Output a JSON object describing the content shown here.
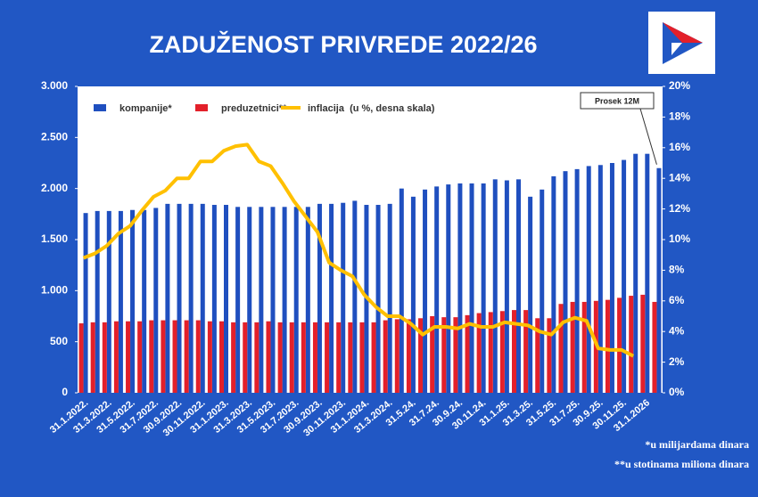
{
  "chart_data": {
    "type": "bar-line",
    "title": "ZADUŽENOST PRIVREDE  2022/26",
    "categories": [
      "31.1.2022.",
      null,
      "31.3.2022.",
      null,
      "31.5.2022.",
      null,
      "31.7.2022.",
      null,
      "30.9.2022.",
      null,
      "30.11.2022.",
      null,
      "31.1.2023.",
      null,
      "31.3.2023.",
      null,
      "31.5.2023.",
      null,
      "31.7.2023.",
      null,
      "30.9.2023.",
      null,
      "30.11.2023.",
      null,
      "31.1.2024.",
      null,
      "31.3.2024.",
      null,
      "31.5.24.",
      null,
      "31.7.24.",
      null,
      "30.9.24.",
      null,
      "30.11.24.",
      null,
      "31.1.25.",
      null,
      "31.3.25.",
      null,
      "31.5.25.",
      null,
      "31.7.25.",
      null,
      "30.9.25.",
      null,
      "30.11.25.",
      null,
      "31.1.2026",
      null
    ],
    "series": [
      {
        "name": "kompanije*",
        "color": "#1f4fbf",
        "type": "bar",
        "values": [
          1760,
          1780,
          1780,
          1780,
          1790,
          1790,
          1810,
          1850,
          1850,
          1850,
          1850,
          1840,
          1840,
          1820,
          1820,
          1820,
          1820,
          1820,
          1820,
          1820,
          1850,
          1850,
          1860,
          1880,
          1840,
          1840,
          1850,
          2000,
          1920,
          1990,
          2020,
          2040,
          2050,
          2050,
          2050,
          2090,
          2080,
          2090,
          1920,
          1990,
          2120,
          2170,
          2190,
          2220,
          2230,
          2250,
          2280,
          2340,
          2340,
          2200
        ]
      },
      {
        "name": "preduzetnici**",
        "color": "#e3202a",
        "type": "bar",
        "values": [
          680,
          690,
          690,
          700,
          700,
          700,
          710,
          710,
          710,
          710,
          710,
          700,
          700,
          690,
          690,
          690,
          700,
          690,
          690,
          690,
          690,
          690,
          690,
          690,
          690,
          690,
          710,
          720,
          720,
          730,
          750,
          740,
          740,
          760,
          780,
          790,
          800,
          810,
          810,
          730,
          730,
          870,
          890,
          890,
          900,
          910,
          930,
          950,
          960,
          890
        ]
      },
      {
        "name": "inflacija  (u %, desna skala)",
        "color": "#ffc000",
        "type": "line",
        "axis": "y2",
        "values": [
          8.8,
          9.1,
          9.6,
          10.4,
          10.9,
          11.9,
          12.8,
          13.2,
          14.0,
          14.0,
          15.1,
          15.1,
          15.8,
          16.1,
          16.2,
          15.1,
          14.8,
          13.7,
          12.5,
          11.5,
          10.5,
          8.5,
          8.0,
          7.6,
          6.4,
          5.6,
          5.0,
          5.0,
          4.5,
          3.8,
          4.3,
          4.3,
          4.2,
          4.5,
          4.3,
          4.3,
          4.6,
          4.5,
          4.4,
          4.0,
          3.8,
          4.6,
          4.9,
          4.7,
          2.9,
          2.8,
          2.8,
          2.4,
          null,
          null
        ]
      }
    ],
    "ylim": [
      0,
      3000
    ],
    "yticks": [
      {
        "value": 0,
        "label": "0"
      },
      {
        "value": 500,
        "label": "500"
      },
      {
        "value": 1000,
        "label": "1.000"
      },
      {
        "value": 1500,
        "label": "1.500"
      },
      {
        "value": 2000,
        "label": "2.000"
      },
      {
        "value": 2500,
        "label": "2.500"
      },
      {
        "value": 3000,
        "label": "3.000"
      }
    ],
    "y2lim": [
      0,
      20
    ],
    "y2ticks": [
      {
        "value": 0,
        "label": "0%"
      },
      {
        "value": 2,
        "label": "2%"
      },
      {
        "value": 4,
        "label": "4%"
      },
      {
        "value": 6,
        "label": "6%"
      },
      {
        "value": 8,
        "label": "8%"
      },
      {
        "value": 10,
        "label": "10%"
      },
      {
        "value": 12,
        "label": "12%"
      },
      {
        "value": 14,
        "label": "14%"
      },
      {
        "value": 16,
        "label": "16%"
      },
      {
        "value": 18,
        "label": "18%"
      },
      {
        "value": 20,
        "label": "20%"
      }
    ],
    "annotation": "Prosek 12M",
    "footnotes": [
      "*u milijardama dinara",
      "**u stotinama miliona dinara"
    ]
  }
}
